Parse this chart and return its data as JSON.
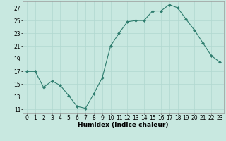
{
  "x": [
    0,
    1,
    2,
    3,
    4,
    5,
    6,
    7,
    8,
    9,
    10,
    11,
    12,
    13,
    14,
    15,
    16,
    17,
    18,
    19,
    20,
    21,
    22,
    23
  ],
  "y": [
    17,
    17,
    14.5,
    15.5,
    14.8,
    13.2,
    11.5,
    11.2,
    13.5,
    16,
    21,
    23,
    24.8,
    25,
    25,
    26.5,
    26.5,
    27.5,
    27,
    25.2,
    23.5,
    21.5,
    19.5,
    18.5
  ],
  "line_color": "#2e7d6e",
  "marker_color": "#2e7d6e",
  "bg_color": "#c8e8e0",
  "grid_major_color": "#b0d8d0",
  "grid_minor_color": "#c0e0d8",
  "xlabel": "Humidex (Indice chaleur)",
  "ylim": [
    10.5,
    28
  ],
  "xlim": [
    -0.5,
    23.5
  ],
  "yticks": [
    11,
    13,
    15,
    17,
    19,
    21,
    23,
    25,
    27
  ],
  "xticks": [
    0,
    1,
    2,
    3,
    4,
    5,
    6,
    7,
    8,
    9,
    10,
    11,
    12,
    13,
    14,
    15,
    16,
    17,
    18,
    19,
    20,
    21,
    22,
    23
  ],
  "label_fontsize": 6.5,
  "tick_fontsize": 5.5
}
